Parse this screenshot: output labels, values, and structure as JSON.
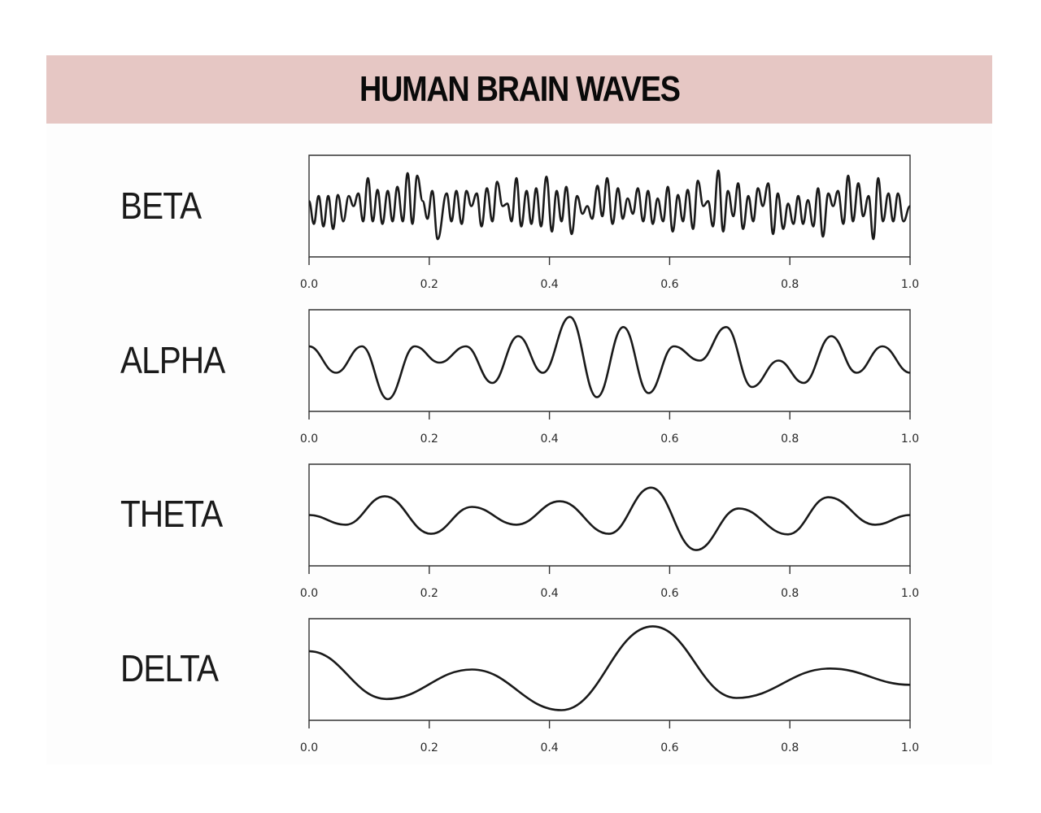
{
  "title": "HUMAN BRAIN WAVES",
  "colors": {
    "header_bg": "#e6c7c4",
    "line": "#1a1a1a",
    "frame": "#333333"
  },
  "chart_data": [
    {
      "type": "line",
      "title": "BETA",
      "xlabel": "",
      "ylabel": "",
      "xlim": [
        0.0,
        1.0
      ],
      "xticks": [
        "0.0",
        "0.2",
        "0.4",
        "0.6",
        "0.8",
        "1.0"
      ],
      "grid": false,
      "series": [
        {
          "name": "BETA",
          "x": [
            0.0,
            0.008,
            0.016,
            0.024,
            0.032,
            0.04,
            0.048,
            0.057,
            0.066,
            0.074,
            0.082,
            0.09,
            0.098,
            0.106,
            0.114,
            0.122,
            0.131,
            0.139,
            0.147,
            0.156,
            0.164,
            0.172,
            0.18,
            0.189,
            0.197,
            0.205,
            0.214,
            0.229,
            0.237,
            0.245,
            0.254,
            0.262,
            0.27,
            0.279,
            0.287,
            0.296,
            0.305,
            0.313,
            0.322,
            0.33,
            0.337,
            0.345,
            0.353,
            0.362,
            0.37,
            0.378,
            0.386,
            0.395,
            0.404,
            0.412,
            0.42,
            0.428,
            0.437,
            0.446,
            0.455,
            0.463,
            0.471,
            0.48,
            0.488,
            0.496,
            0.505,
            0.514,
            0.522,
            0.53,
            0.539,
            0.547,
            0.556,
            0.564,
            0.572,
            0.58,
            0.589,
            0.597,
            0.605,
            0.614,
            0.622,
            0.63,
            0.639,
            0.647,
            0.656,
            0.664,
            0.672,
            0.681,
            0.689,
            0.697,
            0.706,
            0.714,
            0.722,
            0.731,
            0.739,
            0.747,
            0.755,
            0.764,
            0.772,
            0.78,
            0.789,
            0.797,
            0.806,
            0.814,
            0.822,
            0.83,
            0.839,
            0.847,
            0.855,
            0.864,
            0.872,
            0.88,
            0.889,
            0.897,
            0.905,
            0.914,
            0.922,
            0.931,
            0.939,
            0.947,
            0.955,
            0.964,
            0.972,
            0.98,
            0.989,
            1.0
          ],
          "y": [
            0.1,
            -0.35,
            0.2,
            -0.4,
            0.2,
            -0.45,
            0.22,
            -0.3,
            0.2,
            0.0,
            0.25,
            -0.3,
            0.55,
            -0.3,
            0.32,
            -0.35,
            0.3,
            -0.3,
            0.38,
            -0.3,
            0.65,
            -0.35,
            0.6,
            0.1,
            -0.25,
            0.3,
            -0.65,
            0.25,
            -0.3,
            0.3,
            -0.35,
            0.3,
            0.0,
            0.25,
            -0.4,
            0.35,
            -0.3,
            0.48,
            0.0,
            0.05,
            -0.3,
            0.55,
            -0.4,
            0.3,
            -0.35,
            0.35,
            -0.4,
            0.58,
            -0.5,
            0.3,
            -0.3,
            0.38,
            -0.55,
            0.2,
            -0.15,
            0.0,
            -0.25,
            0.4,
            -0.2,
            0.55,
            -0.35,
            0.35,
            -0.25,
            0.15,
            -0.15,
            0.35,
            -0.3,
            0.3,
            -0.35,
            0.15,
            -0.3,
            0.38,
            -0.5,
            0.22,
            -0.3,
            0.32,
            -0.45,
            0.5,
            0.0,
            0.1,
            -0.4,
            0.7,
            -0.5,
            0.3,
            -0.2,
            0.45,
            -0.45,
            0.2,
            -0.3,
            0.35,
            0.0,
            0.45,
            -0.55,
            0.25,
            -0.45,
            0.05,
            -0.35,
            0.2,
            -0.35,
            0.12,
            -0.4,
            0.35,
            -0.6,
            0.25,
            0.0,
            0.3,
            -0.35,
            0.6,
            -0.3,
            0.45,
            -0.2,
            0.2,
            -0.65,
            0.55,
            -0.3,
            0.25,
            -0.3,
            0.25,
            -0.3,
            0.0
          ]
        }
      ]
    },
    {
      "type": "line",
      "title": "ALPHA",
      "xlabel": "",
      "ylabel": "",
      "xlim": [
        0.0,
        1.0
      ],
      "xticks": [
        "0.0",
        "0.2",
        "0.4",
        "0.6",
        "0.8",
        "1.0"
      ],
      "grid": false,
      "series": [
        {
          "name": "ALPHA",
          "x": [
            0.0,
            0.045,
            0.088,
            0.131,
            0.176,
            0.217,
            0.261,
            0.305,
            0.348,
            0.389,
            0.434,
            0.479,
            0.523,
            0.565,
            0.607,
            0.65,
            0.694,
            0.737,
            0.781,
            0.823,
            0.869,
            0.911,
            0.954,
            1.0
          ],
          "y": [
            0.28,
            -0.24,
            0.28,
            -0.76,
            0.28,
            -0.04,
            0.28,
            -0.44,
            0.48,
            -0.24,
            0.86,
            -0.72,
            0.66,
            -0.64,
            0.28,
            0.0,
            0.66,
            -0.52,
            0.0,
            -0.44,
            0.48,
            -0.24,
            0.28,
            -0.24
          ]
        }
      ]
    },
    {
      "type": "line",
      "title": "THETA",
      "xlabel": "",
      "ylabel": "",
      "xlim": [
        0.0,
        1.0
      ],
      "xticks": [
        "0.0",
        "0.2",
        "0.4",
        "0.6",
        "0.8",
        "1.0"
      ],
      "grid": false,
      "series": [
        {
          "name": "THETA",
          "x": [
            0.0,
            0.061,
            0.126,
            0.203,
            0.271,
            0.345,
            0.417,
            0.499,
            0.569,
            0.644,
            0.715,
            0.797,
            0.864,
            0.942,
            1.0
          ],
          "y": [
            0.0,
            -0.19,
            0.37,
            -0.37,
            0.16,
            -0.19,
            0.27,
            -0.37,
            0.54,
            -0.69,
            0.13,
            -0.38,
            0.35,
            -0.19,
            0.0
          ]
        }
      ]
    },
    {
      "type": "line",
      "title": "DELTA",
      "xlabel": "",
      "ylabel": "",
      "xlim": [
        0.0,
        1.0
      ],
      "xticks": [
        "0.0",
        "0.2",
        "0.4",
        "0.6",
        "0.8",
        "1.0"
      ],
      "grid": false,
      "series": [
        {
          "name": "DELTA",
          "x": [
            0.0,
            0.129,
            0.271,
            0.42,
            0.572,
            0.711,
            0.867,
            1.0
          ],
          "y": [
            0.36,
            -0.58,
            0.0,
            -0.8,
            0.85,
            -0.56,
            0.02,
            -0.3
          ]
        }
      ]
    }
  ]
}
